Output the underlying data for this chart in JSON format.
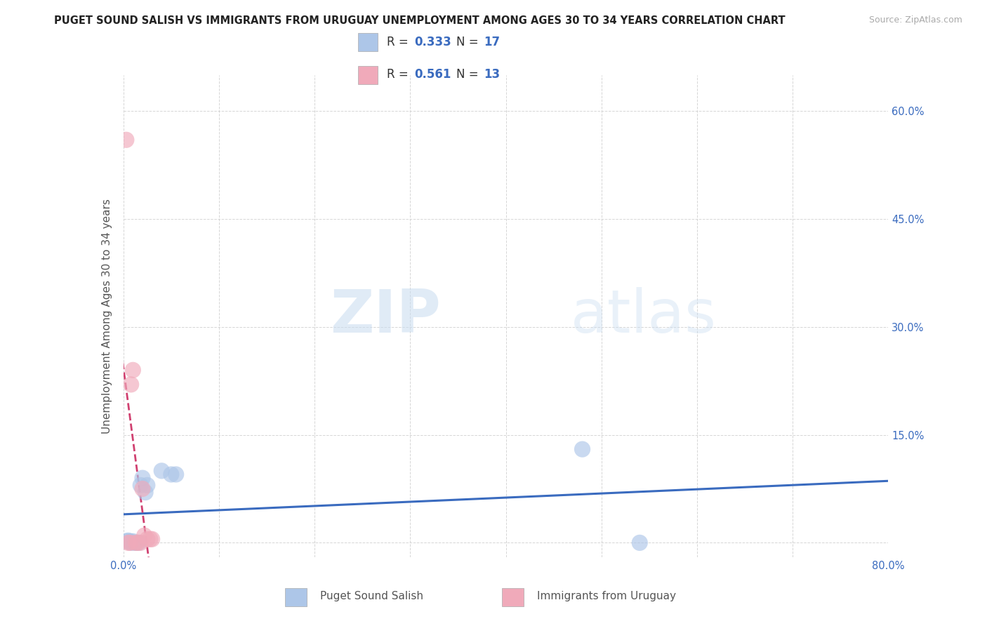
{
  "title": "PUGET SOUND SALISH VS IMMIGRANTS FROM URUGUAY UNEMPLOYMENT AMONG AGES 30 TO 34 YEARS CORRELATION CHART",
  "source": "Source: ZipAtlas.com",
  "ylabel_label": "Unemployment Among Ages 30 to 34 years",
  "xlim": [
    0.0,
    0.8
  ],
  "ylim": [
    -0.02,
    0.65
  ],
  "blue_x": [
    0.003,
    0.005,
    0.007,
    0.008,
    0.01,
    0.012,
    0.014,
    0.016,
    0.018,
    0.02,
    0.023,
    0.025,
    0.04,
    0.05,
    0.055,
    0.48,
    0.54
  ],
  "blue_y": [
    0.002,
    0.003,
    0.002,
    0.0,
    0.002,
    0.0,
    0.0,
    0.0,
    0.08,
    0.09,
    0.07,
    0.08,
    0.1,
    0.095,
    0.095,
    0.13,
    0.0
  ],
  "pink_x": [
    0.003,
    0.005,
    0.007,
    0.008,
    0.01,
    0.013,
    0.015,
    0.018,
    0.02,
    0.022,
    0.025,
    0.028,
    0.03
  ],
  "pink_y": [
    0.56,
    0.0,
    0.0,
    0.22,
    0.24,
    0.0,
    0.0,
    0.0,
    0.075,
    0.01,
    0.005,
    0.005,
    0.005
  ],
  "blue_R": 0.333,
  "blue_N": 17,
  "pink_R": 0.561,
  "pink_N": 13,
  "blue_color": "#adc6e8",
  "pink_color": "#f0aaba",
  "blue_line_color": "#3a6bbf",
  "pink_line_color": "#d04070",
  "pink_line_dash": true,
  "grid_color": "#cccccc",
  "watermark_ZIP": "ZIP",
  "watermark_atlas": "atlas",
  "legend_label_blue": "Puget Sound Salish",
  "legend_label_pink": "Immigrants from Uruguay",
  "title_color": "#222222",
  "axis_label_color": "#555555",
  "tick_color": "#3a6bbf",
  "legend_R_color": "#3a6bbf",
  "legend_N_color": "#3a6bbf",
  "right_tick_color": "#3a6bbf"
}
